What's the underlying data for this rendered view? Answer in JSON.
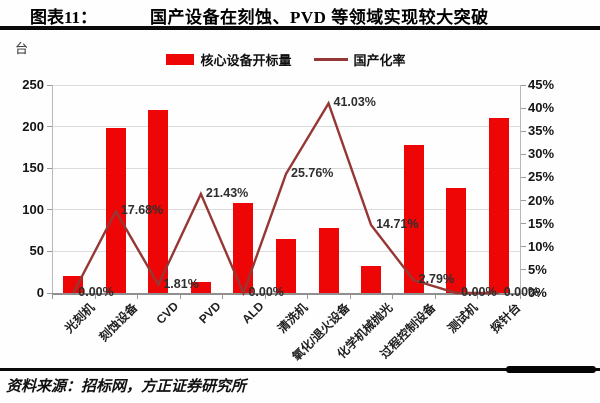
{
  "header": {
    "figure_label": "图表11：",
    "title": "国产设备在刻蚀、PVD 等领域实现较大突破"
  },
  "unit_label": "台",
  "legend": {
    "bar_label": "核心设备开标量",
    "line_label": "国产化率"
  },
  "source": "资料来源：招标网，方正证券研究所",
  "colors": {
    "bar": "#ee0606",
    "line": "#953735",
    "grid": "#dcdcdc"
  },
  "chart_data": {
    "type": "bar",
    "subtype": "bar+line combo",
    "title": "国产设备在刻蚀、PVD 等领域实现较大突破",
    "categories": [
      "光刻机",
      "刻蚀设备",
      "CVD",
      "PVD",
      "ALD",
      "清洗机",
      "氧化/退火设备",
      "化学机械抛光",
      "过程控制设备",
      "测试机",
      "探针台"
    ],
    "series": [
      {
        "name": "核心设备开标量",
        "type": "bar",
        "axis": "left",
        "unit": "台",
        "values": [
          20,
          198,
          220,
          13,
          108,
          65,
          78,
          33,
          178,
          126,
          210
        ]
      },
      {
        "name": "国产化率",
        "type": "line",
        "axis": "right",
        "unit": "%",
        "values": [
          0.0,
          17.68,
          1.81,
          21.43,
          0.0,
          25.76,
          41.03,
          14.71,
          2.79,
          0.0,
          0.0
        ],
        "point_labels": [
          "0.00%",
          "17.68%",
          "1.81%",
          "21.43%",
          "0.00%",
          "25.76%",
          "41.03%",
          "14.71%",
          "2.79%",
          "0.00%",
          "0.00%"
        ]
      }
    ],
    "left_axis": {
      "label": "台",
      "min": 0,
      "max": 250,
      "step": 50,
      "ticks": [
        "0",
        "50",
        "100",
        "150",
        "200",
        "250"
      ]
    },
    "right_axis": {
      "min": 0,
      "max": 45,
      "step": 5,
      "ticks": [
        "0%",
        "5%",
        "10%",
        "15%",
        "20%",
        "25%",
        "30%",
        "35%",
        "40%",
        "45%"
      ]
    },
    "grid": true,
    "legend_position": "top"
  }
}
